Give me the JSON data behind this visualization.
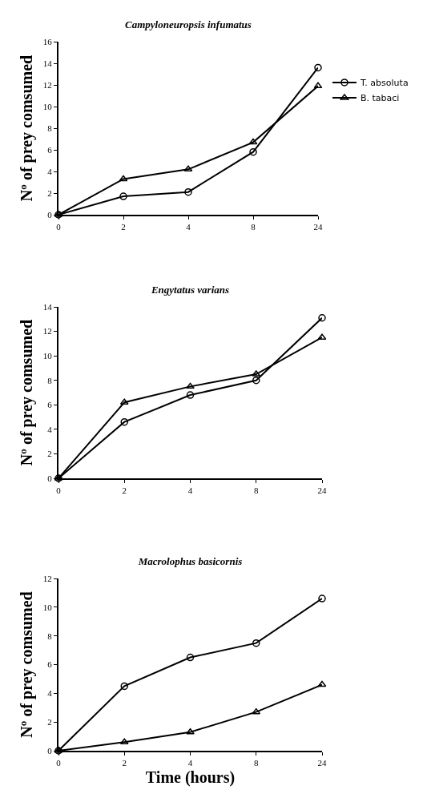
{
  "chart_data": [
    {
      "type": "line",
      "title": "Campyloneuropsis infumatus",
      "ylabel": "Nº of prey comsumed",
      "categories": [
        "0",
        "2",
        "4",
        "8",
        "24"
      ],
      "ylim": [
        0,
        16
      ],
      "yticks": [
        0,
        2,
        4,
        6,
        8,
        10,
        12,
        14,
        16
      ],
      "grid": false,
      "legend": "right",
      "line_style": "solid",
      "series": [
        {
          "name": "T. absoluta",
          "color": "#000000",
          "marker": "circle",
          "values": [
            0,
            1.7,
            2.1,
            5.8,
            13.6
          ]
        },
        {
          "name": "B. tabaci",
          "color": "#000000",
          "marker": "triangle",
          "values": [
            0,
            3.3,
            4.2,
            6.7,
            11.9
          ]
        }
      ]
    },
    {
      "type": "line",
      "title": "Engytatus varians",
      "ylabel": "Nº of prey comsumed",
      "categories": [
        "0",
        "2",
        "4",
        "8",
        "24"
      ],
      "ylim": [
        0,
        14
      ],
      "yticks": [
        0,
        2,
        4,
        6,
        8,
        10,
        12,
        14
      ],
      "grid": false,
      "line_style": "solid",
      "series": [
        {
          "color": "#000000",
          "marker": "circle",
          "values": [
            0,
            4.6,
            6.8,
            8.0,
            13.1
          ]
        },
        {
          "color": "#000000",
          "marker": "triangle",
          "values": [
            0,
            6.2,
            7.5,
            8.5,
            11.5
          ]
        }
      ]
    },
    {
      "type": "line",
      "title": "Macrolophus basicornis",
      "xlabel": "Time (hours)",
      "ylabel": "Nº of prey comsumed",
      "categories": [
        "0",
        "2",
        "4",
        "8",
        "24"
      ],
      "ylim": [
        0,
        12
      ],
      "yticks": [
        0,
        2,
        4,
        6,
        8,
        10,
        12
      ],
      "grid": false,
      "line_style": "solid",
      "series": [
        {
          "color": "#000000",
          "marker": "circle",
          "values": [
            0,
            4.5,
            6.5,
            7.5,
            10.6
          ]
        },
        {
          "color": "#000000",
          "marker": "triangle",
          "values": [
            0,
            0.6,
            1.3,
            2.7,
            4.6
          ]
        }
      ]
    }
  ]
}
